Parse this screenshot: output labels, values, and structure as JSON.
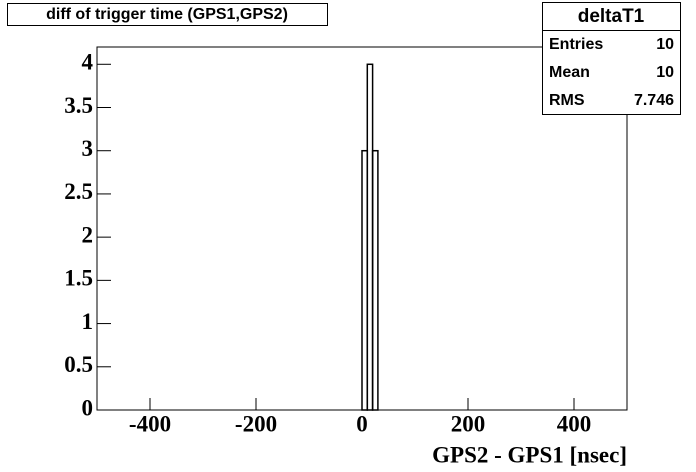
{
  "chart_data": {
    "type": "histogram",
    "title": "diff of trigger time (GPS1,GPS2)",
    "x_label": "GPS2 - GPS1 [nsec]",
    "bins": [
      0,
      10,
      20,
      30
    ],
    "counts": [
      3,
      4,
      3
    ],
    "color": "#000000",
    "xlim": [
      -500,
      500
    ],
    "xticks": [
      -400,
      -200,
      0,
      200,
      400
    ],
    "ylim": [
      0,
      4.2
    ],
    "yticks": [
      0,
      0.5,
      1,
      1.5,
      2,
      2.5,
      3,
      3.5,
      4
    ],
    "stats": {
      "title": "deltaT1",
      "rows": [
        {
          "label": "Entries",
          "value": 10
        },
        {
          "label": "Mean",
          "value": 10
        },
        {
          "label": "RMS",
          "value": 7.746
        }
      ]
    }
  }
}
